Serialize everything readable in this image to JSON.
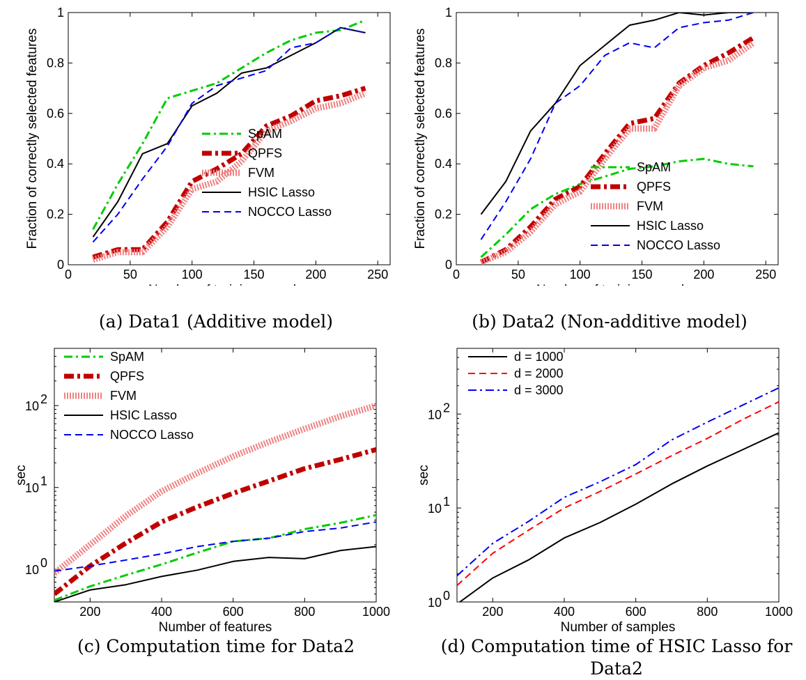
{
  "chart_data": [
    {
      "type": "line",
      "caption": "(a) Data1 (Additive model)",
      "xlabel": "Number of training samples",
      "ylabel": "Fraction of correctly selected features",
      "xlim": [
        0,
        260
      ],
      "ylim": [
        0,
        1
      ],
      "yscale": "linear",
      "xticks": [
        0,
        50,
        100,
        150,
        200,
        250
      ],
      "yticks": [
        0,
        0.2,
        0.4,
        0.6,
        0.8,
        1
      ],
      "xtick_labels": [
        "0",
        "50",
        "100",
        "150",
        "200",
        "250"
      ],
      "ytick_labels": [
        "0",
        "0.2",
        "0.4",
        "0.6",
        "0.8",
        "1"
      ],
      "legend_position": "bottom-right",
      "x": [
        20,
        40,
        60,
        80,
        100,
        120,
        140,
        160,
        180,
        200,
        220,
        240
      ],
      "series": [
        {
          "name": "SpAM",
          "color": "#00cc00",
          "style": "dashdot",
          "width": 3,
          "values": [
            0.14,
            0.32,
            0.48,
            0.66,
            0.69,
            0.72,
            0.78,
            0.84,
            0.89,
            0.92,
            0.93,
            0.97
          ]
        },
        {
          "name": "QPFS",
          "color": "#c00000",
          "style": "dashdot-thick",
          "width": 7,
          "values": [
            0.03,
            0.06,
            0.06,
            0.17,
            0.33,
            0.38,
            0.44,
            0.55,
            0.59,
            0.65,
            0.67,
            0.7
          ]
        },
        {
          "name": "FVM",
          "color": "#f08080",
          "style": "dotted-thick",
          "width": 9,
          "values": [
            0.02,
            0.05,
            0.05,
            0.15,
            0.3,
            0.33,
            0.41,
            0.53,
            0.57,
            0.62,
            0.64,
            0.68
          ]
        },
        {
          "name": "HSIC Lasso",
          "color": "#000000",
          "style": "solid",
          "width": 2,
          "values": [
            0.11,
            0.25,
            0.44,
            0.48,
            0.63,
            0.68,
            0.76,
            0.78,
            0.83,
            0.88,
            0.94,
            0.92
          ]
        },
        {
          "name": "NOCCO Lasso",
          "color": "#0000ee",
          "style": "dashed",
          "width": 2,
          "values": [
            0.09,
            0.2,
            0.34,
            0.47,
            0.64,
            0.71,
            0.74,
            0.77,
            0.86,
            0.88,
            0.94,
            0.92
          ]
        }
      ]
    },
    {
      "type": "line",
      "caption": "(b) Data2 (Non-additive model)",
      "xlabel": "Number of training samples",
      "ylabel": "Fraction of correctly selected features",
      "xlim": [
        0,
        260
      ],
      "ylim": [
        0,
        1
      ],
      "yscale": "linear",
      "xticks": [
        0,
        50,
        100,
        150,
        200,
        250
      ],
      "yticks": [
        0,
        0.2,
        0.4,
        0.6,
        0.8,
        1
      ],
      "xtick_labels": [
        "0",
        "50",
        "100",
        "150",
        "200",
        "250"
      ],
      "ytick_labels": [
        "0",
        "0.2",
        "0.4",
        "0.6",
        "0.8",
        "1"
      ],
      "legend_position": "bottom-right",
      "x": [
        20,
        40,
        60,
        80,
        100,
        120,
        140,
        160,
        180,
        200,
        220,
        240
      ],
      "series": [
        {
          "name": "SpAM",
          "color": "#00cc00",
          "style": "dashdot",
          "width": 3,
          "values": [
            0.03,
            0.12,
            0.22,
            0.28,
            0.32,
            0.35,
            0.38,
            0.39,
            0.41,
            0.42,
            0.4,
            0.39
          ]
        },
        {
          "name": "QPFS",
          "color": "#c00000",
          "style": "dashdot-thick",
          "width": 7,
          "values": [
            0.01,
            0.06,
            0.15,
            0.26,
            0.31,
            0.44,
            0.56,
            0.58,
            0.72,
            0.79,
            0.84,
            0.9
          ]
        },
        {
          "name": "FVM",
          "color": "#f08080",
          "style": "dotted-thick",
          "width": 9,
          "values": [
            0.01,
            0.05,
            0.13,
            0.24,
            0.29,
            0.42,
            0.54,
            0.54,
            0.71,
            0.78,
            0.81,
            0.88
          ]
        },
        {
          "name": "HSIC Lasso",
          "color": "#000000",
          "style": "solid",
          "width": 2,
          "values": [
            0.2,
            0.33,
            0.53,
            0.64,
            0.79,
            0.87,
            0.95,
            0.97,
            1.0,
            0.99,
            1.0,
            1.0
          ]
        },
        {
          "name": "NOCCO Lasso",
          "color": "#0000ee",
          "style": "dashed",
          "width": 2,
          "values": [
            0.1,
            0.25,
            0.42,
            0.64,
            0.71,
            0.83,
            0.88,
            0.86,
            0.94,
            0.96,
            0.97,
            1.0
          ]
        }
      ]
    },
    {
      "type": "line",
      "caption": "(c) Computation time for Data2",
      "xlabel": "Number of features",
      "ylabel": "sec",
      "xlim": [
        100,
        1000
      ],
      "ylim": [
        0.4,
        500
      ],
      "yscale": "log",
      "xticks": [
        200,
        400,
        600,
        800,
        1000
      ],
      "yticks": [
        1,
        10,
        100
      ],
      "xtick_labels": [
        "200",
        "400",
        "600",
        "800",
        "1000"
      ],
      "ytick_labels": [
        "10",
        "10",
        "10"
      ],
      "ytick_exponents": [
        "0",
        "1",
        "2"
      ],
      "legend_position": "top-left",
      "x": [
        100,
        200,
        300,
        400,
        500,
        600,
        700,
        800,
        900,
        1000
      ],
      "series": [
        {
          "name": "SpAM",
          "color": "#00cc00",
          "style": "dashdot",
          "width": 3,
          "values": [
            0.42,
            0.62,
            0.85,
            1.15,
            1.6,
            2.2,
            2.4,
            3.1,
            3.7,
            4.6
          ]
        },
        {
          "name": "QPFS",
          "color": "#c00000",
          "style": "dashdot-thick",
          "width": 7,
          "values": [
            0.5,
            1.1,
            2.1,
            3.8,
            5.8,
            8.5,
            12,
            17,
            22,
            29
          ]
        },
        {
          "name": "FVM",
          "color": "#f08080",
          "style": "dotted-thick",
          "width": 9,
          "values": [
            0.9,
            2.0,
            4.5,
            9,
            15,
            24,
            36,
            52,
            74,
            100
          ]
        },
        {
          "name": "HSIC Lasso",
          "color": "#000000",
          "style": "solid",
          "width": 2,
          "values": [
            0.4,
            0.56,
            0.65,
            0.82,
            0.98,
            1.25,
            1.4,
            1.35,
            1.7,
            1.9
          ]
        },
        {
          "name": "NOCCO Lasso",
          "color": "#0000ee",
          "style": "dashed",
          "width": 2,
          "values": [
            0.95,
            1.1,
            1.3,
            1.55,
            1.9,
            2.2,
            2.4,
            2.9,
            3.2,
            3.8
          ]
        }
      ]
    },
    {
      "type": "line",
      "caption": "(d) Computation time of HSIC Lasso for Data2",
      "xlabel": "Number of samples",
      "ylabel": "sec",
      "xlim": [
        100,
        1000
      ],
      "ylim": [
        1,
        500
      ],
      "yscale": "log",
      "xticks": [
        200,
        400,
        600,
        800,
        1000
      ],
      "yticks": [
        1,
        10,
        100
      ],
      "xtick_labels": [
        "200",
        "400",
        "600",
        "800",
        "1000"
      ],
      "ytick_labels": [
        "10",
        "10",
        "10"
      ],
      "ytick_exponents": [
        "0",
        "1",
        "2"
      ],
      "legend_position": "top-left",
      "x": [
        100,
        200,
        300,
        400,
        500,
        600,
        700,
        800,
        900,
        1000
      ],
      "series": [
        {
          "name": "d = 1000",
          "color": "#000000",
          "style": "solid",
          "width": 2,
          "values": [
            0.95,
            1.8,
            2.8,
            4.8,
            7,
            11,
            18,
            28,
            42,
            63
          ]
        },
        {
          "name": "d = 2000",
          "color": "#ff0000",
          "style": "dashed",
          "width": 2,
          "values": [
            1.5,
            3.3,
            5.8,
            10,
            15,
            23,
            36,
            55,
            88,
            135
          ]
        },
        {
          "name": "d = 3000",
          "color": "#0000ee",
          "style": "dashdot",
          "width": 2,
          "values": [
            1.9,
            4.2,
            7.2,
            13,
            19,
            29,
            53,
            82,
            125,
            190
          ]
        }
      ]
    }
  ]
}
